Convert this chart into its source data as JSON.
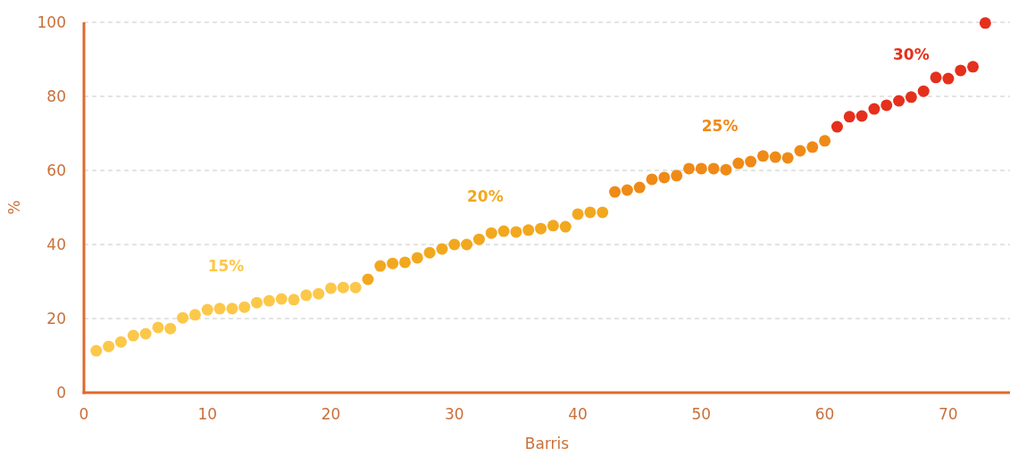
{
  "chart_data": {
    "type": "scatter",
    "xlabel": "Barris",
    "ylabel": "%",
    "xlim": [
      0,
      75
    ],
    "ylim": [
      0,
      100
    ],
    "xticks": [
      0,
      10,
      20,
      30,
      40,
      50,
      60,
      70
    ],
    "yticks": [
      0,
      20,
      40,
      60,
      80,
      100
    ],
    "grid": "y",
    "marker": "circle",
    "series": [
      {
        "name": "15%",
        "color": "#fcc84a",
        "x": [
          1,
          2,
          3,
          4,
          5,
          6,
          7,
          8,
          9,
          10,
          11,
          12,
          13,
          14,
          15,
          16,
          17,
          18,
          19,
          20,
          21,
          22
        ],
        "values": [
          11.3,
          12.5,
          13.7,
          15.4,
          15.9,
          17.6,
          17.3,
          20.2,
          21,
          22.4,
          22.7,
          22.7,
          23.1,
          24.3,
          24.8,
          25.3,
          25.1,
          26.3,
          26.7,
          28.2,
          28.4,
          28.4
        ]
      },
      {
        "name": "20%",
        "color": "#f2a81e",
        "x": [
          23,
          24,
          25,
          26,
          27,
          28,
          29,
          30,
          31,
          32,
          33,
          34,
          35,
          36,
          37,
          38,
          39,
          40,
          41,
          42
        ],
        "values": [
          30.6,
          34.2,
          34.9,
          35.2,
          36.4,
          37.8,
          38.8,
          40,
          40,
          41.4,
          43.1,
          43.6,
          43.4,
          43.9,
          44.3,
          45.1,
          44.8,
          48.2,
          48.7,
          48.7
        ]
      },
      {
        "name": "25%",
        "color": "#ef8a17",
        "x": [
          43,
          44,
          45,
          46,
          47,
          48,
          49,
          50,
          51,
          52,
          53,
          54,
          55,
          56,
          57,
          58,
          59,
          60
        ],
        "values": [
          54.2,
          54.7,
          55.4,
          57.6,
          58.1,
          58.6,
          60.5,
          60.5,
          60.5,
          60.2,
          61.9,
          62.4,
          63.9,
          63.6,
          63.4,
          65.3,
          66.3,
          68
        ]
      },
      {
        "name": "30%",
        "color": "#e4301c",
        "x": [
          61,
          62,
          63,
          64,
          65,
          66,
          67,
          68,
          69,
          70,
          71,
          72,
          73
        ],
        "values": [
          71.8,
          74.5,
          74.7,
          76.6,
          77.6,
          78.8,
          79.8,
          81.4,
          85.1,
          84.8,
          87,
          88,
          99.8
        ]
      }
    ]
  }
}
